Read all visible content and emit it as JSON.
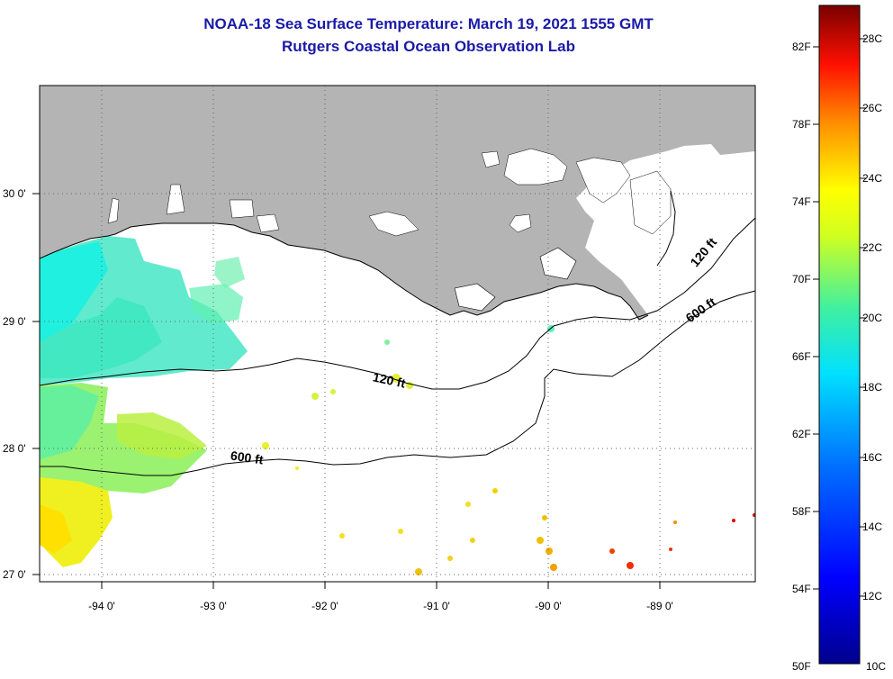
{
  "title_line1": "NOAA-18 Sea Surface Temperature:  March 19, 2021 1555 GMT",
  "title_line2": "Rutgers Coastal Ocean Observation Lab",
  "lat_labels": [
    "30 0'",
    "29 0'",
    "28 0'",
    "27 0'"
  ],
  "lon_labels": [
    "-94 0'",
    "-93 0'",
    "-92 0'",
    "-91 0'",
    "-90 0'",
    "-89 0'"
  ],
  "contour_labels": {
    "c120_a": "120 ft",
    "c120_b": "120 ft",
    "c600_a": "600 ft",
    "c600_b": "600 ft"
  },
  "colorbar": {
    "fahrenheit": [
      "82F",
      "78F",
      "74F",
      "70F",
      "66F",
      "62F",
      "58F",
      "54F",
      "50F"
    ],
    "celsius": [
      "28C",
      "26C",
      "24C",
      "22C",
      "20C",
      "18C",
      "16C",
      "14C",
      "12C",
      "10C"
    ],
    "range_c": [
      10,
      29
    ]
  },
  "colors": {
    "land": "#b4b4b4",
    "title": "#1a1aa8",
    "no_data": "#ffffff"
  }
}
